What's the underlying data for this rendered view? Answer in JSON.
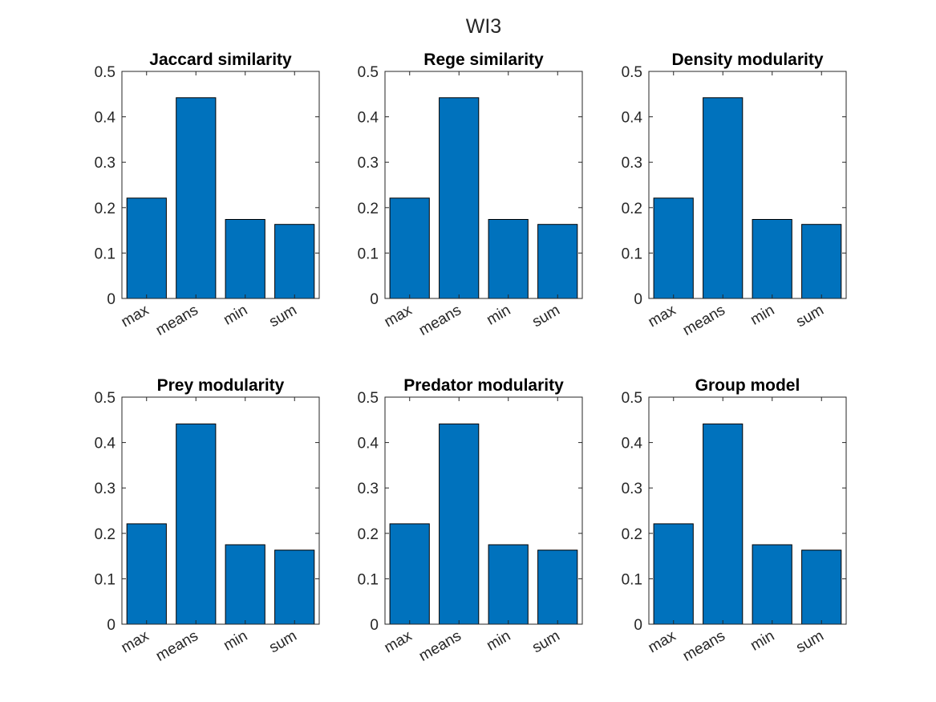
{
  "figure": {
    "title": "WI3"
  },
  "colors": {
    "bar_fill": "#0072BD",
    "axis": "#262626",
    "bar_edge": "#000000"
  },
  "chart_data": [
    {
      "type": "bar",
      "title": "Jaccard similarity",
      "categories": [
        "max",
        "means",
        "min",
        "sum"
      ],
      "values": [
        0.221,
        0.442,
        0.174,
        0.163
      ],
      "xlabel": "",
      "ylabel": "",
      "ylim": [
        0,
        0.5
      ],
      "yticks": [
        "0",
        "0.1",
        "0.2",
        "0.3",
        "0.4",
        "0.5"
      ],
      "grid": false
    },
    {
      "type": "bar",
      "title": "Rege similarity",
      "categories": [
        "max",
        "means",
        "min",
        "sum"
      ],
      "values": [
        0.221,
        0.442,
        0.174,
        0.163
      ],
      "xlabel": "",
      "ylabel": "",
      "ylim": [
        0,
        0.5
      ],
      "yticks": [
        "0",
        "0.1",
        "0.2",
        "0.3",
        "0.4",
        "0.5"
      ],
      "grid": false
    },
    {
      "type": "bar",
      "title": "Density modularity",
      "categories": [
        "max",
        "means",
        "min",
        "sum"
      ],
      "values": [
        0.221,
        0.442,
        0.174,
        0.163
      ],
      "xlabel": "",
      "ylabel": "",
      "ylim": [
        0,
        0.5
      ],
      "yticks": [
        "0",
        "0.1",
        "0.2",
        "0.3",
        "0.4",
        "0.5"
      ],
      "grid": false
    },
    {
      "type": "bar",
      "title": "Prey modularity",
      "categories": [
        "max",
        "means",
        "min",
        "sum"
      ],
      "values": [
        0.221,
        0.441,
        0.175,
        0.163
      ],
      "xlabel": "",
      "ylabel": "",
      "ylim": [
        0,
        0.5
      ],
      "yticks": [
        "0",
        "0.1",
        "0.2",
        "0.3",
        "0.4",
        "0.5"
      ],
      "grid": false
    },
    {
      "type": "bar",
      "title": "Predator modularity",
      "categories": [
        "max",
        "means",
        "min",
        "sum"
      ],
      "values": [
        0.221,
        0.441,
        0.175,
        0.163
      ],
      "xlabel": "",
      "ylabel": "",
      "ylim": [
        0,
        0.5
      ],
      "yticks": [
        "0",
        "0.1",
        "0.2",
        "0.3",
        "0.4",
        "0.5"
      ],
      "grid": false
    },
    {
      "type": "bar",
      "title": "Group model",
      "categories": [
        "max",
        "means",
        "min",
        "sum"
      ],
      "values": [
        0.221,
        0.441,
        0.175,
        0.163
      ],
      "xlabel": "",
      "ylabel": "",
      "ylim": [
        0,
        0.5
      ],
      "yticks": [
        "0",
        "0.1",
        "0.2",
        "0.3",
        "0.4",
        "0.5"
      ],
      "grid": false
    }
  ]
}
